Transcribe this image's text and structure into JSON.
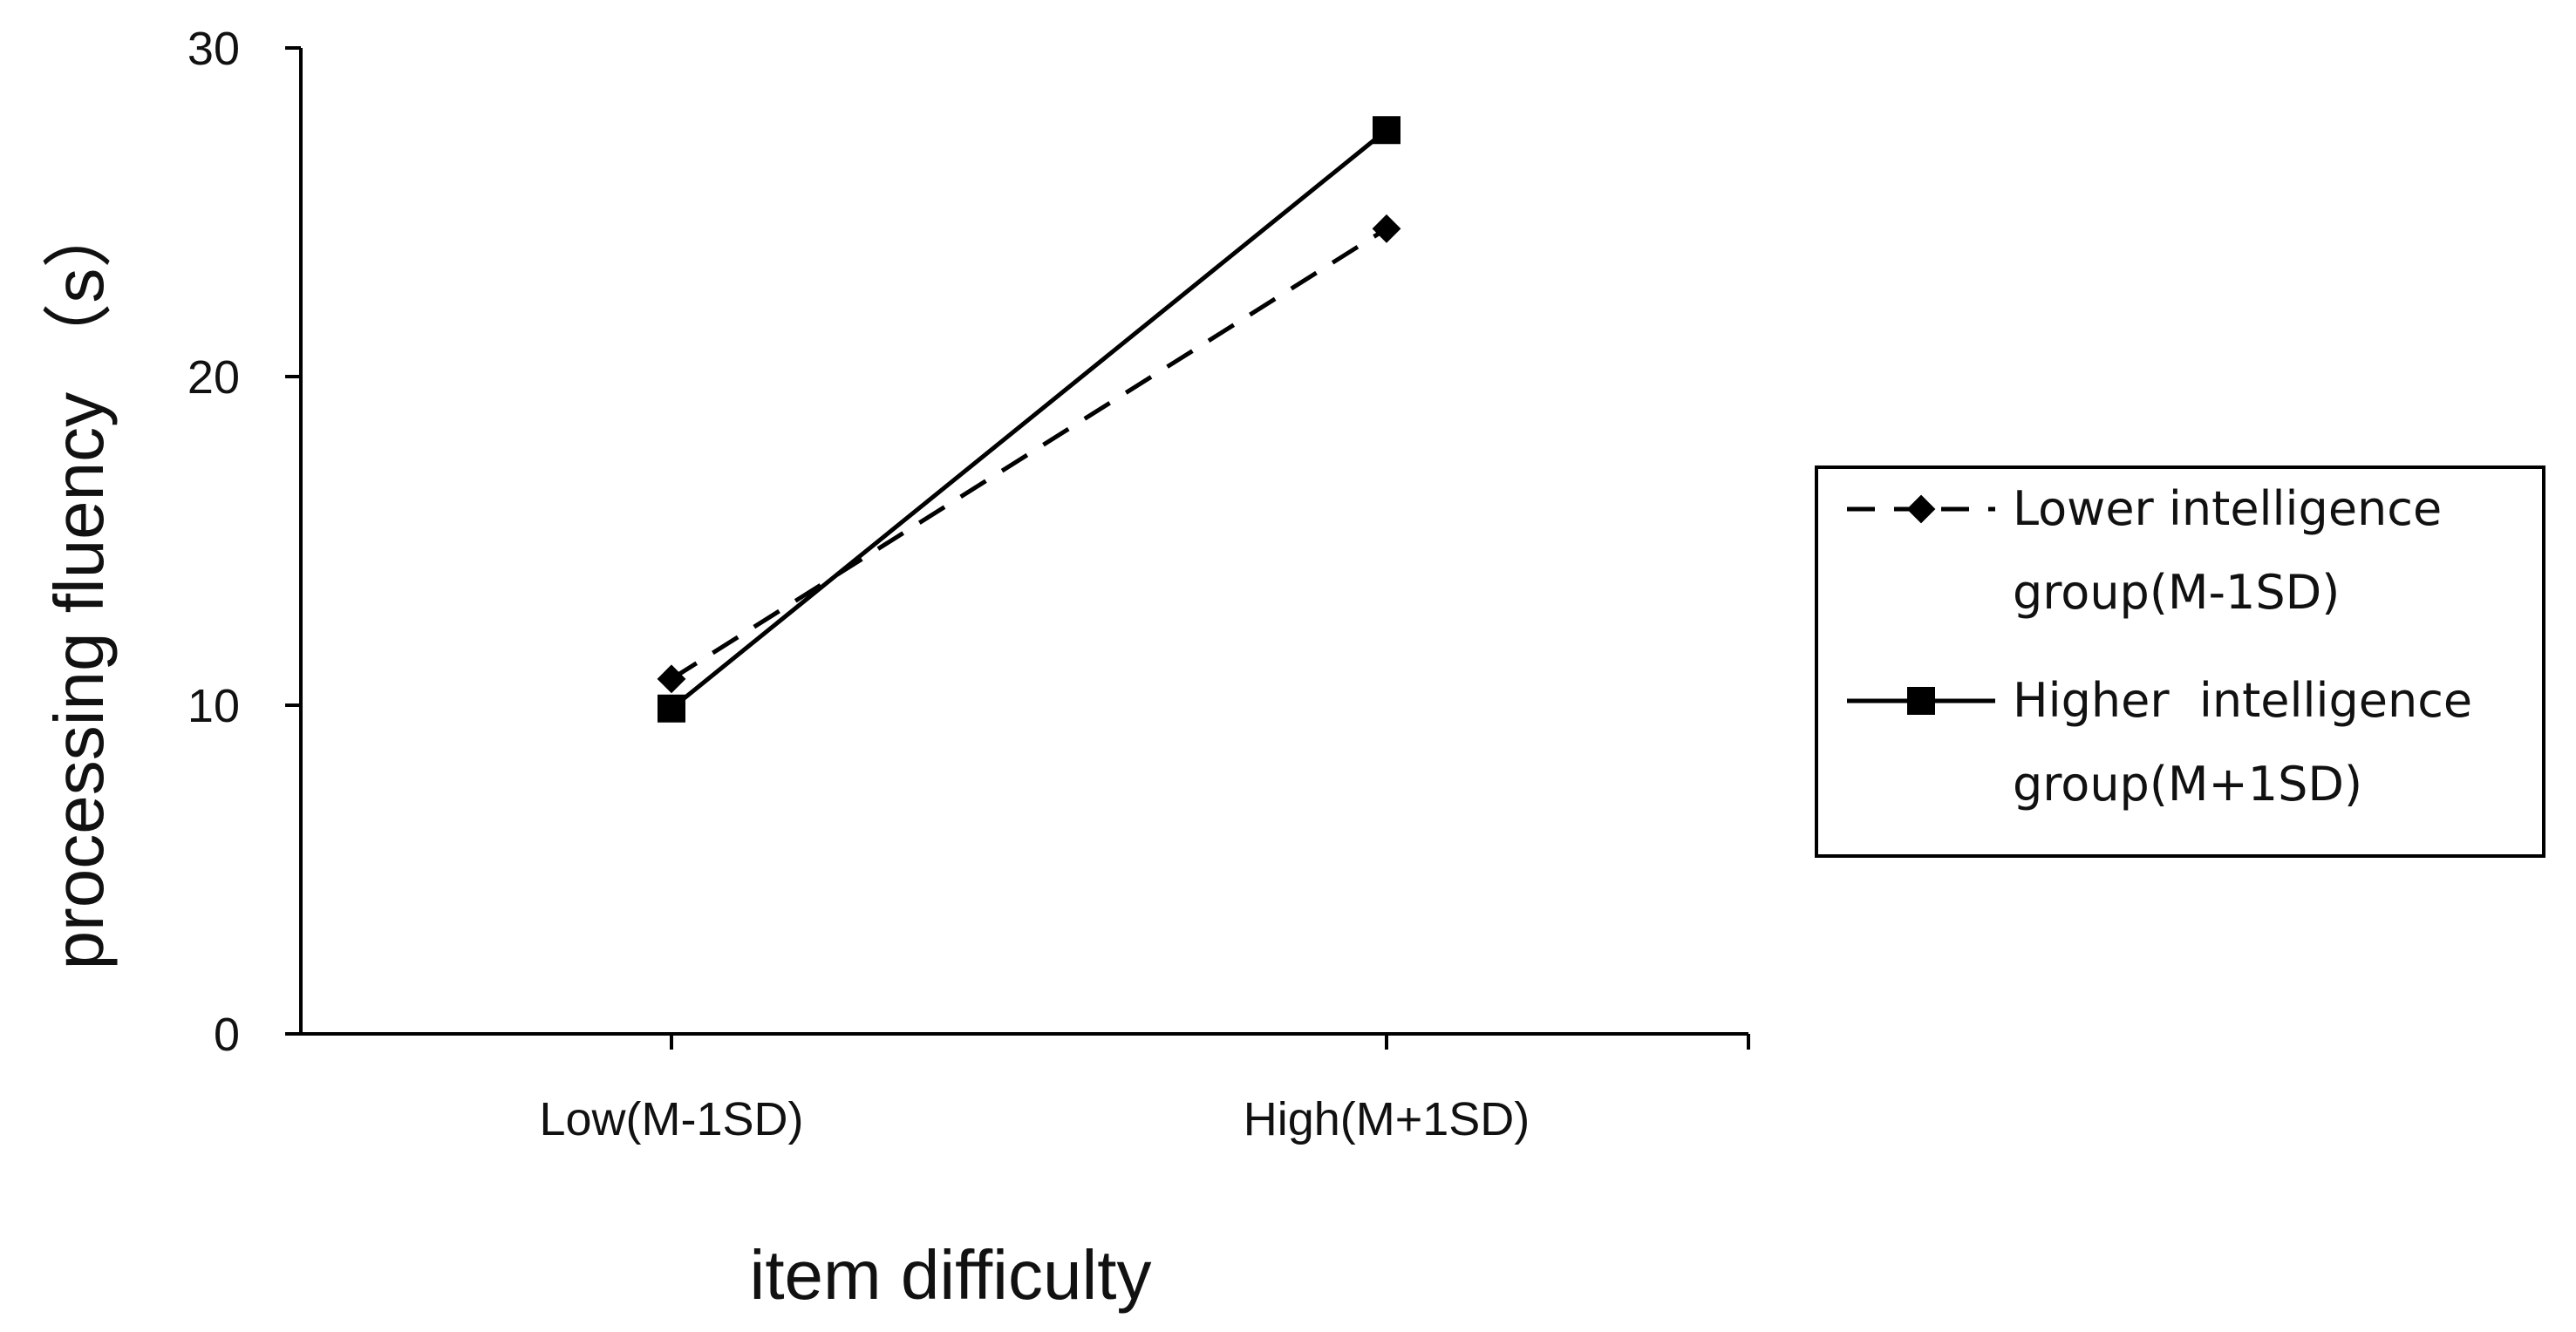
{
  "chart_data": {
    "type": "line",
    "categories": [
      "Low(M-1SD)",
      "High(M+1SD)"
    ],
    "xlabel": "item difficulty",
    "ylabel": "processing  fluency （s）",
    "ylim": [
      0,
      30
    ],
    "yticks": [
      0,
      10,
      20,
      30
    ],
    "grid": false,
    "legend_position": "right",
    "series": [
      {
        "name_line1": "Lower intelligence",
        "name_line2": "group(M-1SD)",
        "values": [
          10.8,
          24.5
        ],
        "marker": "diamond",
        "line_style": "dashed",
        "color": "#000000"
      },
      {
        "name_line1": "Higher  intelligence",
        "name_line2": "group(M+1SD)",
        "values": [
          9.9,
          27.5
        ],
        "marker": "square",
        "line_style": "solid",
        "color": "#000000"
      }
    ]
  }
}
